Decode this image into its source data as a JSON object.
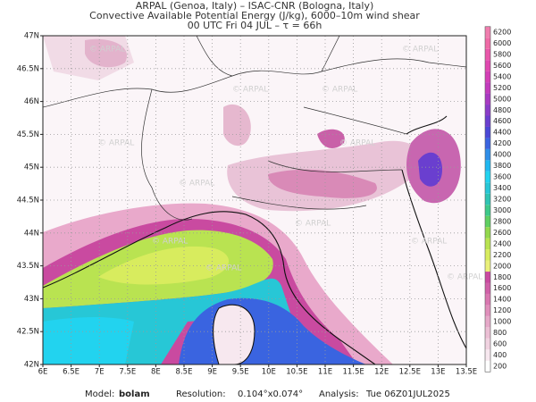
{
  "header": {
    "line1": "ARPAL (Genoa, Italy)  –  ISAC-CNR (Bologna, Italy)",
    "line2": "Convective Available Potential Energy (J/kg), 6000–10m wind shear",
    "line3": "00 UTC Fri 04 JUL  –  τ = 66h"
  },
  "map": {
    "watermark": "© ARPAL",
    "lon_ticks": [
      {
        "value": 6,
        "label": "6E"
      },
      {
        "value": 6.5,
        "label": "6.5E"
      },
      {
        "value": 7,
        "label": "7E"
      },
      {
        "value": 7.5,
        "label": "7.5E"
      },
      {
        "value": 8,
        "label": "8E"
      },
      {
        "value": 8.5,
        "label": "8.5E"
      },
      {
        "value": 9,
        "label": "9E"
      },
      {
        "value": 9.5,
        "label": "9.5E"
      },
      {
        "value": 10,
        "label": "10E"
      },
      {
        "value": 10.5,
        "label": "10.5E"
      },
      {
        "value": 11,
        "label": "11E"
      },
      {
        "value": 11.5,
        "label": "11.5E"
      },
      {
        "value": 12,
        "label": "12E"
      },
      {
        "value": 12.5,
        "label": "12.5E"
      },
      {
        "value": 13,
        "label": "13E"
      },
      {
        "value": 13.5,
        "label": "13.5E"
      }
    ],
    "lat_ticks": [
      {
        "value": 42,
        "label": "42N"
      },
      {
        "value": 42.5,
        "label": "42.5N"
      },
      {
        "value": 43,
        "label": "43N"
      },
      {
        "value": 43.5,
        "label": "43.5N"
      },
      {
        "value": 44,
        "label": "44N"
      },
      {
        "value": 44.5,
        "label": "44.5N"
      },
      {
        "value": 45,
        "label": "45N"
      },
      {
        "value": 45.5,
        "label": "45.5N"
      },
      {
        "value": 46,
        "label": "46N"
      },
      {
        "value": 46.5,
        "label": "46.5N"
      },
      {
        "value": 47,
        "label": "47N"
      }
    ],
    "colorbar": {
      "ticks": [
        200,
        400,
        600,
        800,
        1000,
        1200,
        1400,
        1600,
        1800,
        2000,
        2200,
        2400,
        2600,
        2800,
        3000,
        3200,
        3400,
        3600,
        3800,
        4000,
        4200,
        4400,
        4600,
        4800,
        5000,
        5200,
        5400,
        5600,
        5800,
        6000,
        6200
      ],
      "colors": [
        "#ffffff",
        "#f7e8ef",
        "#f0d2e0",
        "#ebbfd4",
        "#e6a9c8",
        "#e08fbb",
        "#d977b0",
        "#d060a8",
        "#c94aa0",
        "#eaf07a",
        "#d8ec5e",
        "#b9e351",
        "#93d84d",
        "#5fcf62",
        "#3dc98a",
        "#2fc4b3",
        "#27c7d6",
        "#22d3ef",
        "#1fb8f0",
        "#2f8ee8",
        "#3a64e0",
        "#4a48d6",
        "#6a3fcf",
        "#8a3cc8",
        "#a83ac2",
        "#c23bbd",
        "#d43fb6",
        "#e048b0",
        "#e957aa",
        "#ef6aa6",
        "#f07dae"
      ]
    }
  },
  "footer": {
    "model_label": "Model:",
    "model": "bolam",
    "resolution_label": "Resolution:",
    "resolution": "0.104°x0.074°",
    "analysis_label": "Analysis:",
    "analysis": "Tue 06Z01JUL2025"
  }
}
